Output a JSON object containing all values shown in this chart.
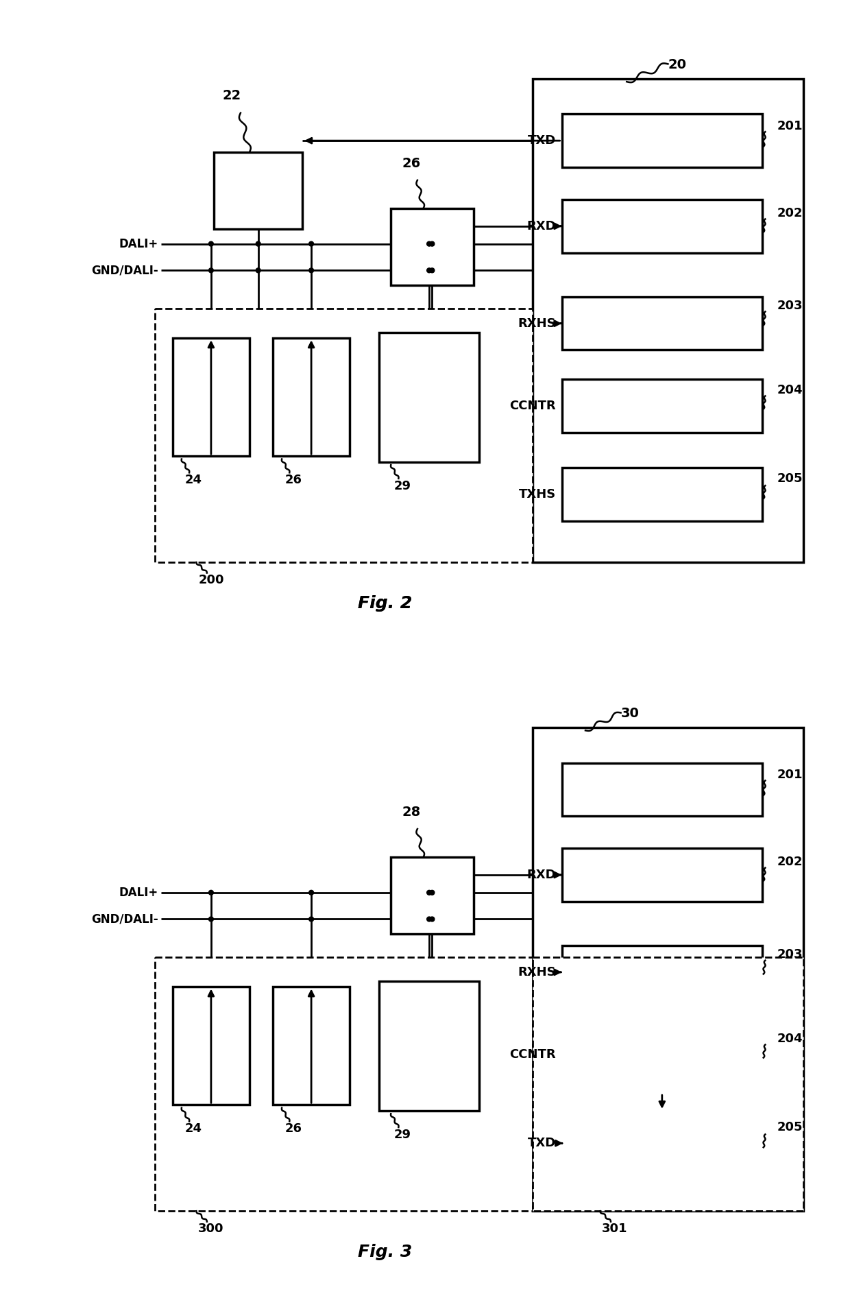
{
  "bg_color": "#ffffff",
  "fig2": {
    "title": "Fig. 2",
    "labels": {
      "20": "20",
      "22": "22",
      "26": "26",
      "24": "24",
      "26b": "26",
      "29": "29",
      "200": "200",
      "201": "201",
      "202": "202",
      "203": "203",
      "204": "204",
      "205": "205",
      "TXD": "TXD",
      "RXD": "RXD",
      "RXHS": "RXHS",
      "CCNTR": "CCNTR",
      "TXHS": "TXHS",
      "DALI_plus": "DALI+",
      "GND_DALI": "GND/DALI-"
    }
  },
  "fig3": {
    "title": "Fig. 3",
    "labels": {
      "30": "30",
      "28": "28",
      "24": "24",
      "26": "26",
      "29": "29",
      "300": "300",
      "301": "301",
      "201": "201",
      "202": "202",
      "203": "203",
      "204": "204",
      "205": "205",
      "RXD": "RXD",
      "RXHS": "RXHS",
      "CCNTR": "CCNTR",
      "TXD": "TXD",
      "DALI_plus": "DALI+",
      "GND_DALI": "GND/DALI-"
    }
  }
}
